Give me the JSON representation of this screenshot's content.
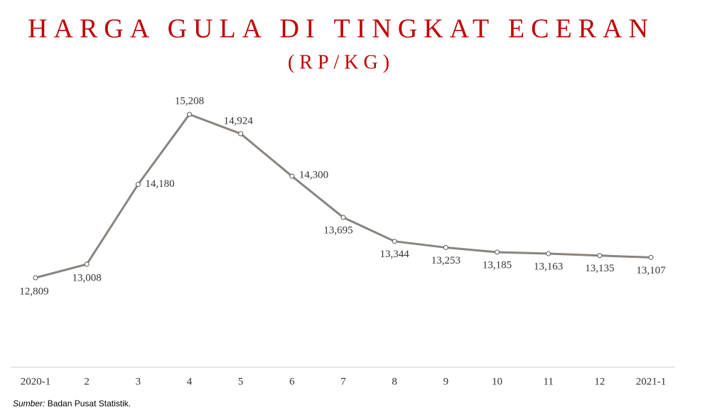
{
  "chart_data": {
    "type": "line",
    "title": "HARGA GULA DI TINGKAT ECERAN",
    "subtitle": "(RP/KG)",
    "categories": [
      "2020-1",
      "2",
      "3",
      "4",
      "5",
      "6",
      "7",
      "8",
      "9",
      "10",
      "11",
      "12",
      "2021-1"
    ],
    "values": [
      12809,
      13008,
      14180,
      15208,
      14924,
      14300,
      13695,
      13344,
      13253,
      13185,
      13163,
      13135,
      13107
    ],
    "value_labels": [
      "12,809",
      "13,008",
      "14,180",
      "15,208",
      "14,924",
      "14,300",
      "13,695",
      "13,344",
      "13,253",
      "13,185",
      "13,163",
      "13,135",
      "13,107"
    ],
    "color": "#8a847f",
    "source_label": "Sumber:",
    "source": "Badan Pusat Statistik."
  }
}
